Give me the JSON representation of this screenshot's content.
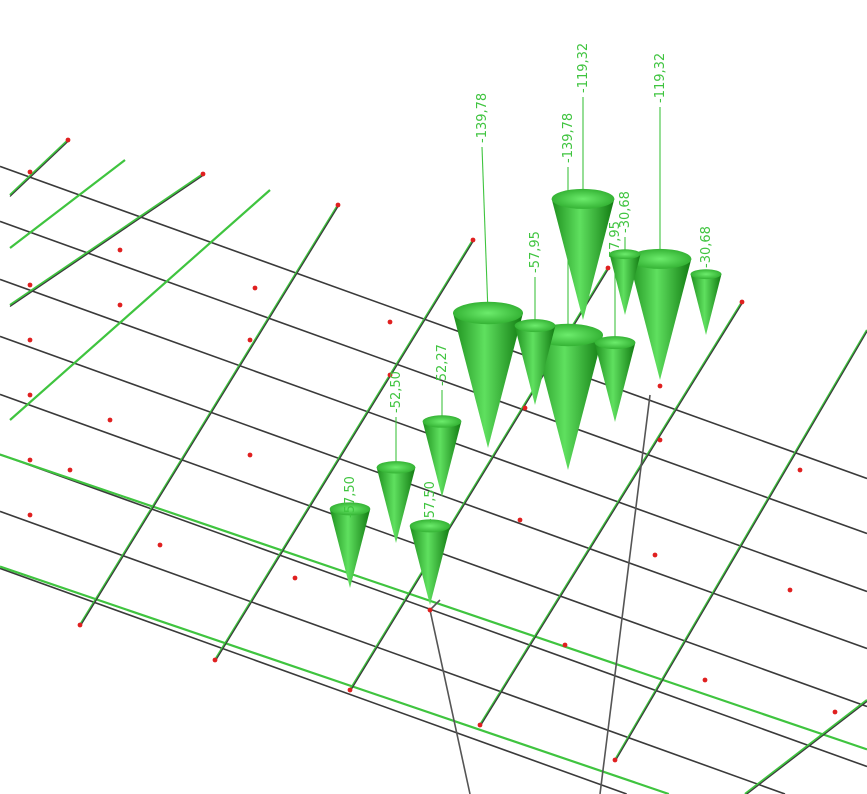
{
  "loads": [
    {
      "value": "-139,78"
    },
    {
      "value": "-139,78"
    },
    {
      "value": "-119,32"
    },
    {
      "value": "-119,32"
    },
    {
      "value": "-57,95"
    },
    {
      "value": "-57,95"
    },
    {
      "value": "-30,68"
    },
    {
      "value": "-30,68"
    },
    {
      "value": "-52,50"
    },
    {
      "value": "-52,27"
    },
    {
      "value": "-57,50"
    },
    {
      "value": "-57,50"
    }
  ],
  "colors": {
    "load_green": "#3fc43f",
    "cone_light": "#5fe05f",
    "cone_dark": "#117a11",
    "grid_dark": "#3a3a3a",
    "node_red": "#e02020"
  }
}
